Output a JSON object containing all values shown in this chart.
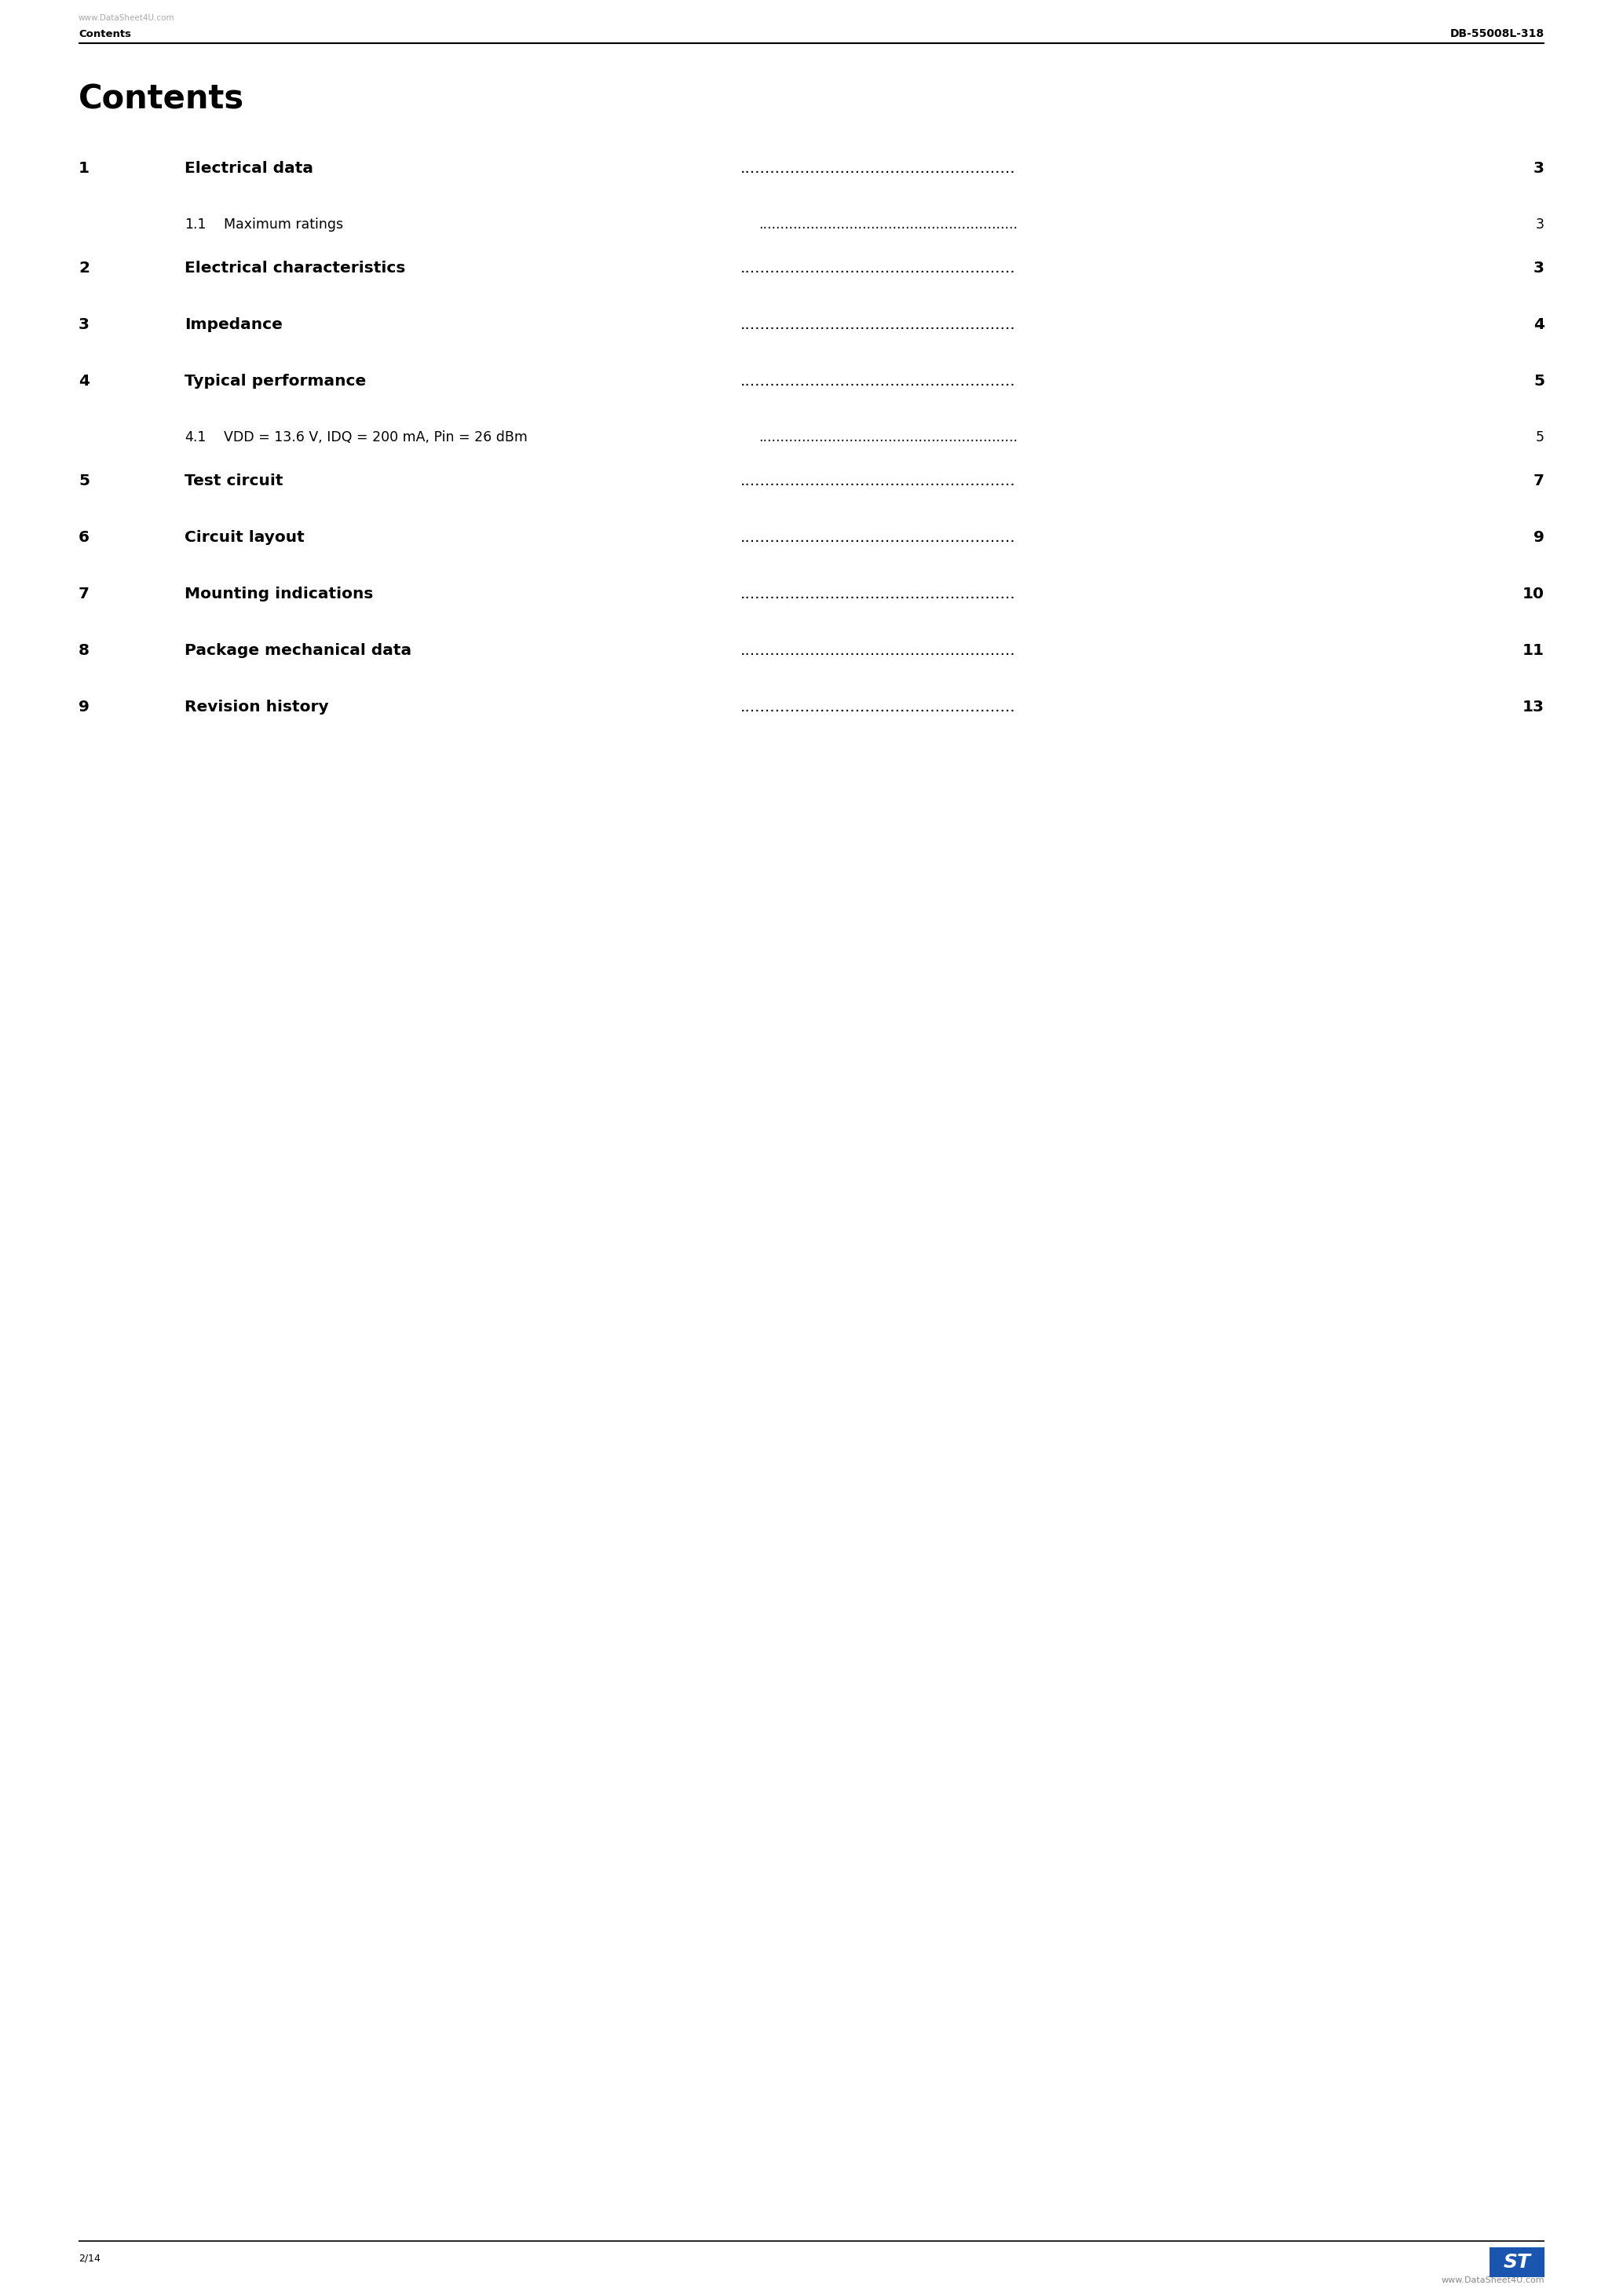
{
  "page_bg": "#ffffff",
  "header_watermark": "www.DataSheet4U.com",
  "header_left_bold": "Contents",
  "header_right": "DB-55008L-318",
  "page_title": "Contents",
  "toc_entries": [
    {
      "num": "1",
      "title": "Electrical data",
      "bold": true,
      "page": "3",
      "indent": 0
    },
    {
      "num": "1.1",
      "title": "Maximum ratings",
      "bold": false,
      "page": "3",
      "indent": 1
    },
    {
      "num": "2",
      "title": "Electrical characteristics",
      "bold": true,
      "page": "3",
      "indent": 0
    },
    {
      "num": "3",
      "title": "Impedance",
      "bold": true,
      "page": "4",
      "indent": 0
    },
    {
      "num": "4",
      "title": "Typical performance",
      "bold": true,
      "page": "5",
      "indent": 0
    },
    {
      "num": "4.1",
      "title": "VDD = 13.6 V, IDQ = 200 mA, Pin = 26 dBm",
      "bold": false,
      "page": "5",
      "indent": 1
    },
    {
      "num": "5",
      "title": "Test circuit",
      "bold": true,
      "page": "7",
      "indent": 0
    },
    {
      "num": "6",
      "title": "Circuit layout",
      "bold": true,
      "page": "9",
      "indent": 0
    },
    {
      "num": "7",
      "title": "Mounting indications",
      "bold": true,
      "page": "10",
      "indent": 0
    },
    {
      "num": "8",
      "title": "Package mechanical data",
      "bold": true,
      "page": "11",
      "indent": 0
    },
    {
      "num": "9",
      "title": "Revision history",
      "bold": true,
      "page": "13",
      "indent": 0
    }
  ],
  "footer_page": "2/14",
  "footer_watermark": "www.DataSheet4U.com",
  "st_logo_color": "#1a56b0"
}
